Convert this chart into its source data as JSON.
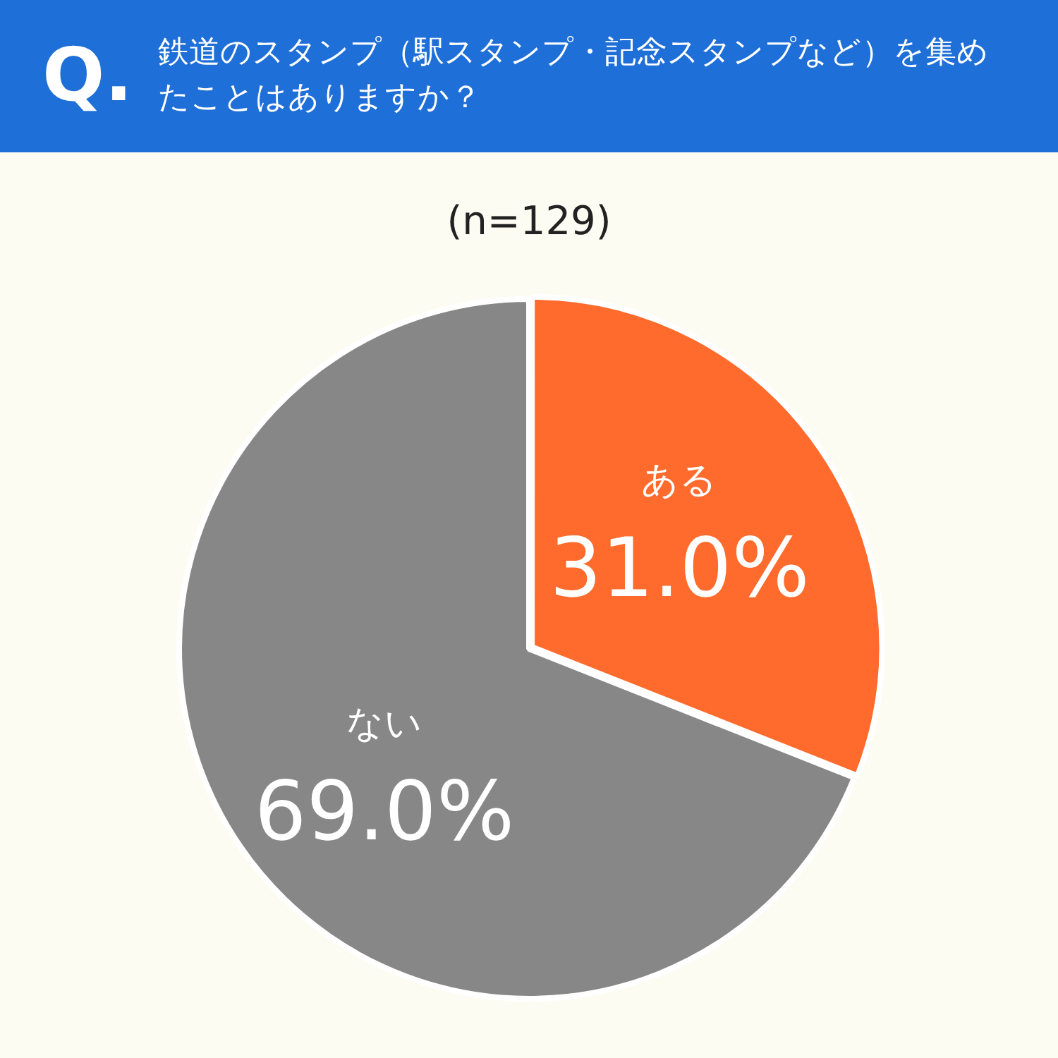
{
  "chart_data": {
    "type": "pie",
    "title": "鉄道のスタンプ（駅スタンプ・記念スタンプなど）を集めたことはありますか？",
    "subtitle": "(n=129)",
    "annotations": [
      "Q."
    ],
    "categories": [
      "ある",
      "ない"
    ],
    "values": [
      31.0,
      69.0
    ],
    "colors": [
      "#ff6b2c",
      "#878787"
    ],
    "value_labels": [
      "31.0%",
      "69.0%"
    ],
    "legend": false
  }
}
